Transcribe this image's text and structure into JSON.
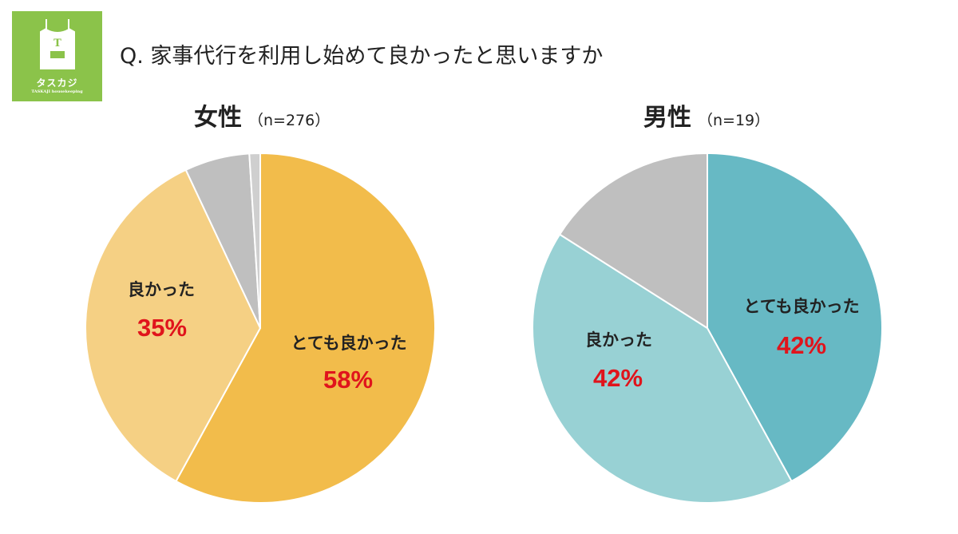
{
  "logo": {
    "letter": "T",
    "name": "タスカジ",
    "sub": "TASKAJI housekeeping"
  },
  "question": "Q. 家事代行を利用し始めて良かったと思いますか",
  "chart_data": [
    {
      "type": "pie",
      "title": "女性",
      "n_label": "（n=276）",
      "categories": [
        "とても良かった",
        "良かった",
        "",
        ""
      ],
      "values": [
        58,
        35,
        6,
        1
      ],
      "value_labels": [
        "58%",
        "35%",
        "",
        ""
      ],
      "colors": [
        "#F2BC4B",
        "#F5D084",
        "#BFBFBF",
        "#CFCFCF"
      ]
    },
    {
      "type": "pie",
      "title": "男性",
      "n_label": "（n=19）",
      "categories": [
        "とても良かった",
        "良かった",
        ""
      ],
      "values": [
        42,
        42,
        16
      ],
      "value_labels": [
        "42%",
        "42%",
        ""
      ],
      "colors": [
        "#67B9C4",
        "#98D1D4",
        "#BFBFBF"
      ]
    }
  ]
}
